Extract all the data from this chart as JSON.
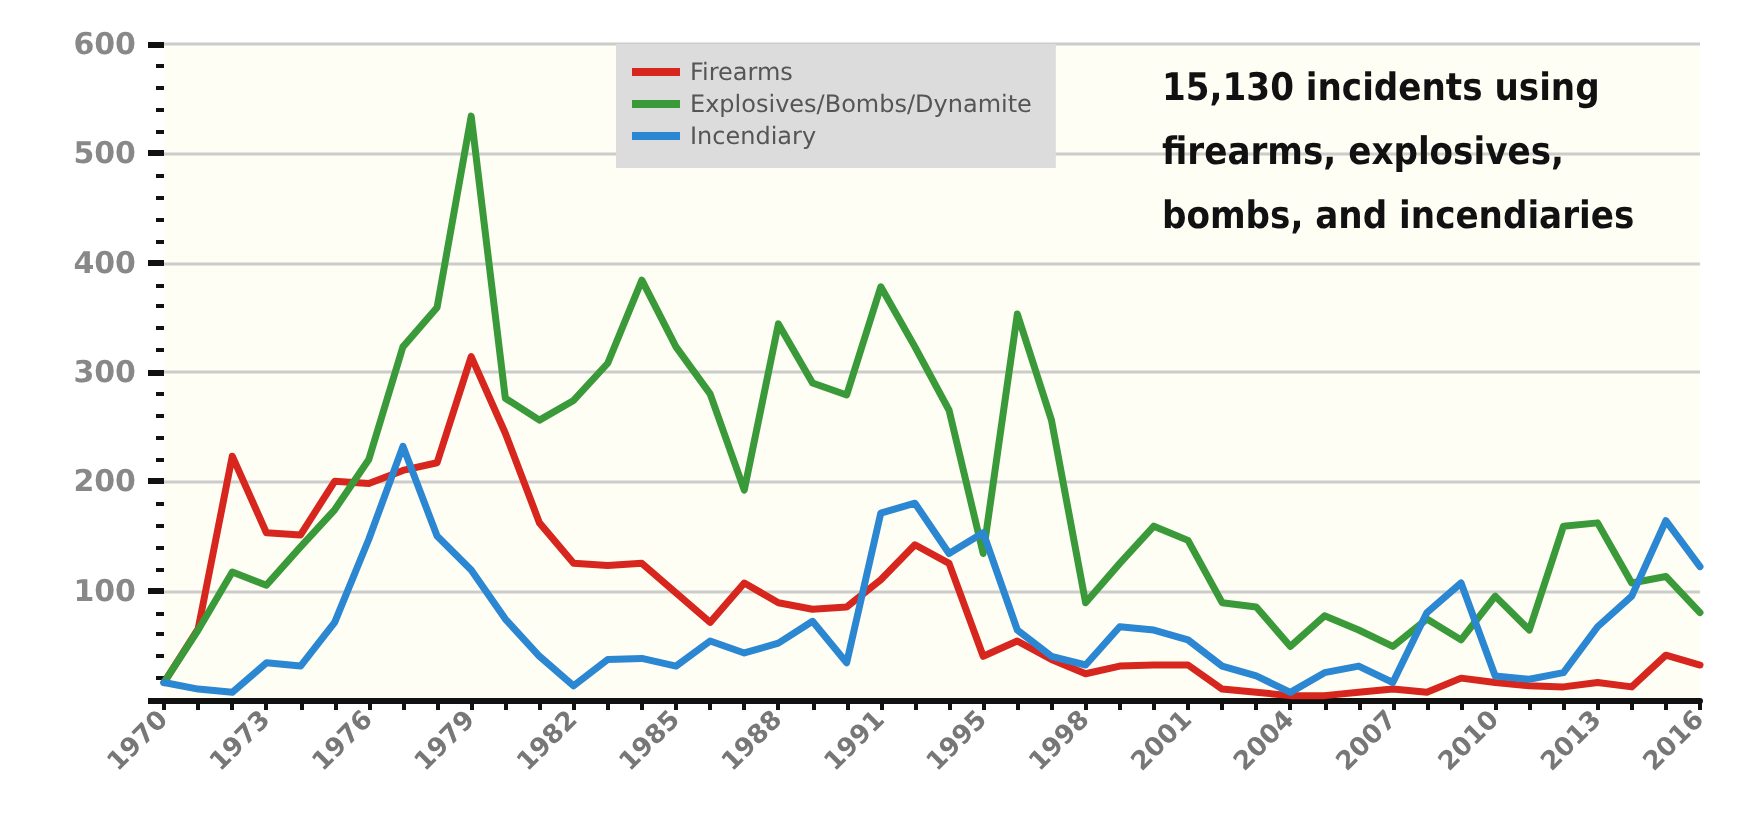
{
  "chart_data": {
    "type": "line",
    "categories": [
      "1970",
      null,
      null,
      "1973",
      null,
      null,
      "1976",
      null,
      null,
      "1979",
      null,
      null,
      "1982",
      null,
      null,
      "1985",
      null,
      null,
      "1988",
      null,
      null,
      "1991",
      null,
      null,
      "1995",
      null,
      null,
      "1998",
      null,
      null,
      "2001",
      null,
      null,
      "2004",
      null,
      null,
      "2007",
      null,
      null,
      "2010",
      null,
      null,
      "2013",
      null,
      null,
      "2016"
    ],
    "series": [
      {
        "name": "Firearms",
        "color": "#d7261e",
        "values": [
          16,
          65,
          223,
          153,
          151,
          200,
          198,
          210,
          217,
          314,
          244,
          162,
          125,
          123,
          125,
          98,
          71,
          107,
          89,
          83,
          85,
          110,
          142,
          125,
          40,
          54,
          37,
          24,
          31,
          32,
          32,
          10,
          7,
          4,
          4,
          7,
          10,
          7,
          20,
          16,
          13,
          12,
          16,
          12,
          41,
          32
        ]
      },
      {
        "name": "Explosives/Bombs/Dynamite",
        "color": "#3a9a3a",
        "values": [
          16,
          64,
          117,
          105,
          140,
          174,
          220,
          323,
          359,
          534,
          276,
          256,
          274,
          308,
          384,
          323,
          280,
          192,
          344,
          290,
          279,
          378,
          323,
          265,
          134,
          353,
          256,
          89,
          125,
          159,
          146,
          89,
          85,
          49,
          77,
          64,
          49,
          74,
          55,
          95,
          64,
          159,
          162,
          107,
          113,
          80
        ]
      },
      {
        "name": "Incendiary",
        "color": "#2b87d1",
        "values": [
          16,
          10,
          7,
          34,
          31,
          71,
          147,
          232,
          150,
          119,
          74,
          40,
          13,
          37,
          38,
          31,
          54,
          43,
          52,
          72,
          34,
          171,
          180,
          134,
          153,
          64,
          40,
          32,
          67,
          64,
          55,
          31,
          22,
          7,
          25,
          31,
          16,
          80,
          107,
          22,
          19,
          25,
          67,
          95,
          164,
          122
        ]
      }
    ],
    "ylim": [
      0,
      600
    ],
    "yticks": [
      {
        "value": 0,
        "label": null
      },
      100,
      200,
      300,
      400,
      500,
      600
    ],
    "grid": "y",
    "legend": "top",
    "marker": "none",
    "line_style": "solid",
    "annotations": [
      "15,130 incidents using firearms, explosives, bombs, and incendiaries"
    ]
  }
}
